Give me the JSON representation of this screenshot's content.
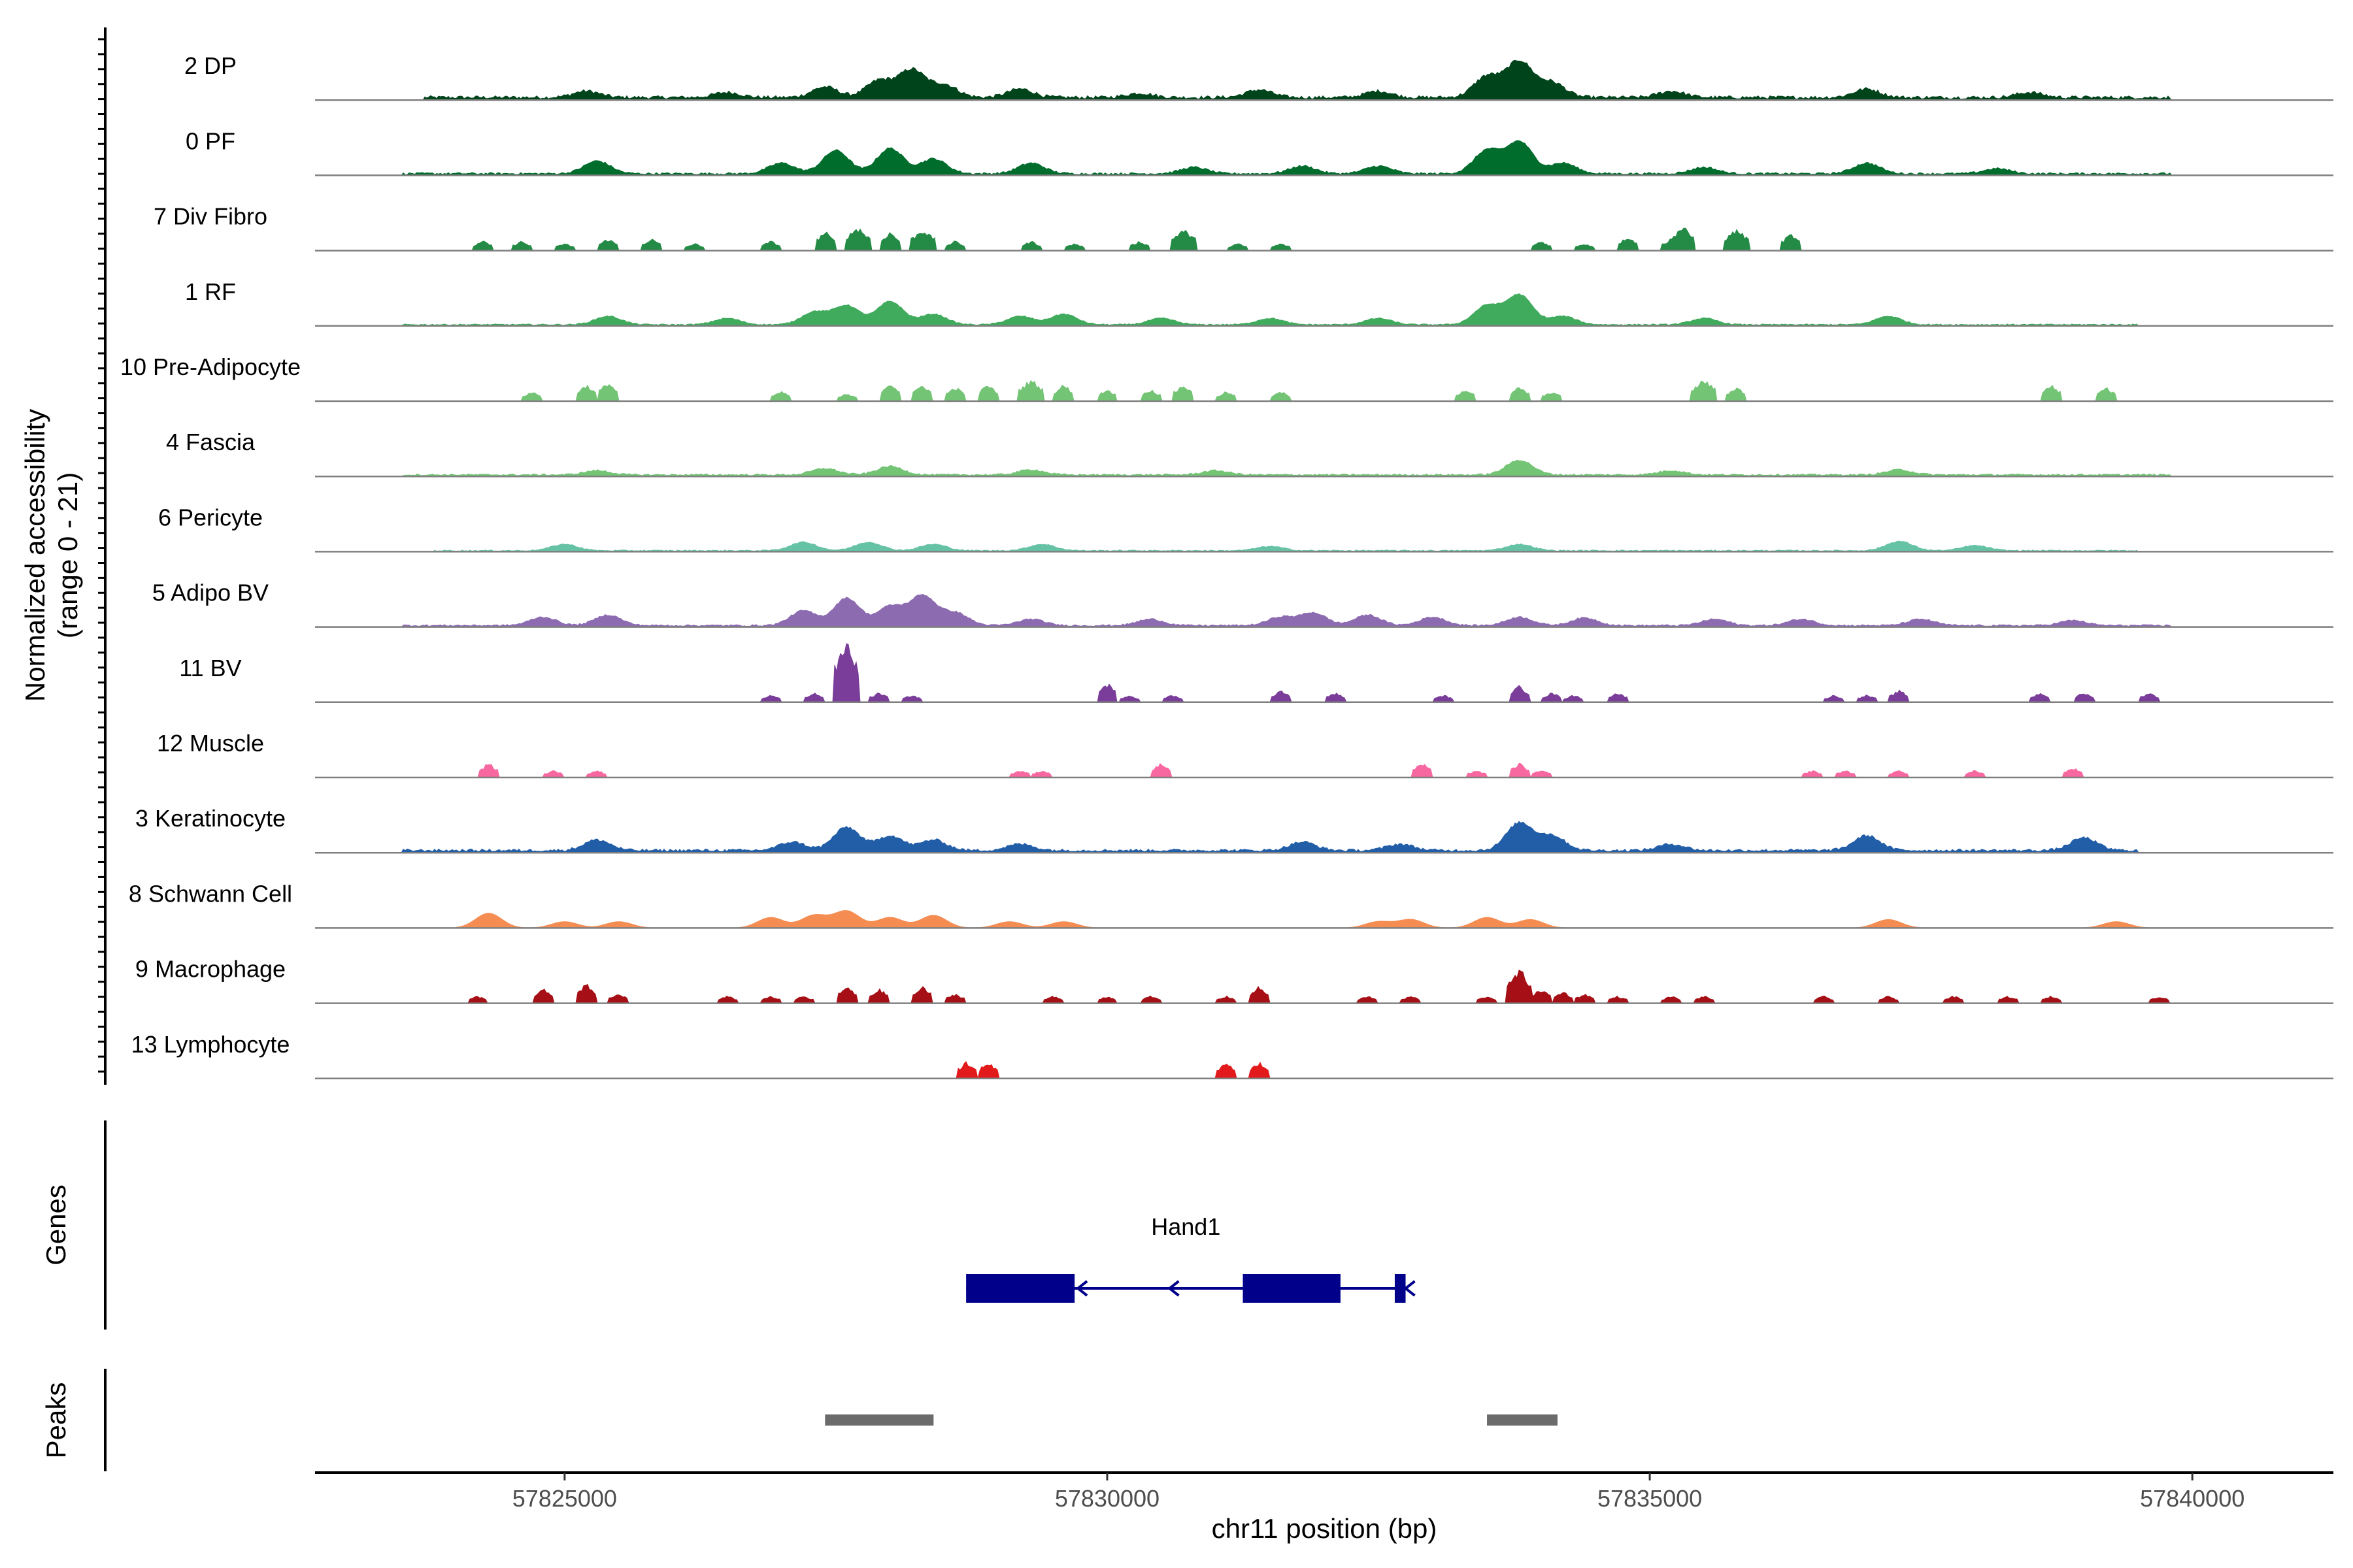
{
  "chart_data": {
    "type": "area",
    "subtype": "genome-coverage-tracks",
    "region": {
      "chrom": "chr11",
      "start": 57822700,
      "end": 57841300
    },
    "ylabel": "Normalized accessibility",
    "ylabel_range": "(range 0 - 21)",
    "ylim": [
      0,
      21
    ],
    "xlabel": "chr11 position (bp)",
    "xticks": [
      57825000,
      57830000,
      57835000,
      57840000
    ],
    "xtick_labels": [
      "57825000",
      "57830000",
      "57835000",
      "57840000"
    ],
    "tracks": [
      {
        "name": "2 DP",
        "color": "#00441b",
        "mode": "smooth",
        "range": [
          57823700,
          57839800
        ],
        "base": 0.8,
        "noise": 1.0,
        "peaks": [
          [
            57825200,
            1.5
          ],
          [
            57826500,
            1.2
          ],
          [
            57827400,
            2.5
          ],
          [
            57827900,
            4.0
          ],
          [
            57828200,
            6.5
          ],
          [
            57828500,
            3.0
          ],
          [
            57829200,
            2.0
          ],
          [
            57830300,
            1.0
          ],
          [
            57831400,
            1.8
          ],
          [
            57832500,
            1.5
          ],
          [
            57833500,
            5.0
          ],
          [
            57833800,
            8.5
          ],
          [
            57834100,
            3.5
          ],
          [
            57835200,
            1.5
          ],
          [
            57837000,
            2.0
          ],
          [
            57838500,
            1.2
          ]
        ]
      },
      {
        "name": "0 PF",
        "color": "#006d2c",
        "mode": "smooth",
        "range": [
          57823500,
          57839800
        ],
        "base": 0.6,
        "noise": 0.8,
        "peaks": [
          [
            57825300,
            3.0
          ],
          [
            57827000,
            2.5
          ],
          [
            57827500,
            5.5
          ],
          [
            57828000,
            6.0
          ],
          [
            57828400,
            3.5
          ],
          [
            57829300,
            2.5
          ],
          [
            57830800,
            1.5
          ],
          [
            57831800,
            1.8
          ],
          [
            57832500,
            1.8
          ],
          [
            57833500,
            5.5
          ],
          [
            57833800,
            7.5
          ],
          [
            57834200,
            2.5
          ],
          [
            57835500,
            1.5
          ],
          [
            57837000,
            2.5
          ],
          [
            57838200,
            1.2
          ]
        ]
      },
      {
        "name": "7 Div Fibro",
        "color": "#238b45",
        "mode": "blocky",
        "peaks": [
          [
            57824250,
            2.0
          ],
          [
            57824600,
            2.0
          ],
          [
            57825000,
            1.5
          ],
          [
            57825400,
            2.5
          ],
          [
            57825800,
            2.5
          ],
          [
            57826200,
            1.5
          ],
          [
            57826900,
            2.0
          ],
          [
            57827400,
            4.0
          ],
          [
            57827700,
            5.0
          ],
          [
            57828000,
            4.0
          ],
          [
            57828300,
            4.5
          ],
          [
            57828600,
            2.0
          ],
          [
            57829300,
            2.0
          ],
          [
            57829700,
            1.5
          ],
          [
            57830300,
            2.0
          ],
          [
            57830700,
            4.5
          ],
          [
            57831200,
            1.5
          ],
          [
            57831600,
            1.5
          ],
          [
            57834000,
            2.0
          ],
          [
            57834400,
            1.5
          ],
          [
            57834800,
            3.0
          ],
          [
            57835200,
            2.5
          ],
          [
            57835300,
            5.0
          ],
          [
            57835800,
            4.5
          ],
          [
            57836300,
            3.5
          ]
        ]
      },
      {
        "name": "1 RF",
        "color": "#41ab5d",
        "mode": "smooth",
        "range": [
          57823500,
          57839500
        ],
        "base": 0.5,
        "noise": 0.6,
        "peaks": [
          [
            57825400,
            2.0
          ],
          [
            57826500,
            1.5
          ],
          [
            57827300,
            3.0
          ],
          [
            57827600,
            4.5
          ],
          [
            57828000,
            5.5
          ],
          [
            57828400,
            2.5
          ],
          [
            57829200,
            2.0
          ],
          [
            57829600,
            2.5
          ],
          [
            57830500,
            1.5
          ],
          [
            57831500,
            1.5
          ],
          [
            57832500,
            1.5
          ],
          [
            57833500,
            4.5
          ],
          [
            57833800,
            7.0
          ],
          [
            57834200,
            2.0
          ],
          [
            57835500,
            1.5
          ],
          [
            57837200,
            2.0
          ]
        ]
      },
      {
        "name": "10 Pre-Adipocyte",
        "color": "#74c476",
        "mode": "blocky",
        "peaks": [
          [
            57824700,
            2.0
          ],
          [
            57825200,
            3.5
          ],
          [
            57825400,
            4.0
          ],
          [
            57827000,
            2.0
          ],
          [
            57827600,
            1.5
          ],
          [
            57828000,
            4.0
          ],
          [
            57828300,
            3.5
          ],
          [
            57828600,
            3.0
          ],
          [
            57828900,
            3.5
          ],
          [
            57829300,
            4.5
          ],
          [
            57829600,
            3.5
          ],
          [
            57830000,
            2.5
          ],
          [
            57830400,
            2.5
          ],
          [
            57830700,
            3.5
          ],
          [
            57831100,
            2.0
          ],
          [
            57831600,
            2.0
          ],
          [
            57833300,
            2.5
          ],
          [
            57833800,
            3.0
          ],
          [
            57834100,
            2.0
          ],
          [
            57835500,
            4.5
          ],
          [
            57835800,
            3.0
          ],
          [
            57838700,
            3.5
          ],
          [
            57839200,
            3.0
          ]
        ]
      },
      {
        "name": "4 Fascia",
        "color": "#74c476",
        "mode": "smooth",
        "range": [
          57823500,
          57839800
        ],
        "base": 0.6,
        "noise": 0.7,
        "peaks": [
          [
            57825300,
            1.0
          ],
          [
            57827400,
            1.5
          ],
          [
            57828000,
            2.0
          ],
          [
            57829300,
            1.2
          ],
          [
            57831000,
            1.0
          ],
          [
            57833800,
            3.5
          ],
          [
            57835200,
            1.0
          ],
          [
            57837300,
            1.2
          ]
        ]
      },
      {
        "name": "6 Pericyte",
        "color": "#66c2a4",
        "mode": "smooth",
        "range": [
          57823800,
          57839500
        ],
        "base": 0.4,
        "noise": 0.7,
        "peaks": [
          [
            57825000,
            1.5
          ],
          [
            57827200,
            2.0
          ],
          [
            57827800,
            2.0
          ],
          [
            57828400,
            1.5
          ],
          [
            57829400,
            1.5
          ],
          [
            57831500,
            1.0
          ],
          [
            57833800,
            1.5
          ],
          [
            57837300,
            2.2
          ],
          [
            57838000,
            1.2
          ]
        ]
      },
      {
        "name": "5 Adipo BV",
        "color": "#8c6bb1",
        "mode": "smooth",
        "range": [
          57823500,
          57839800
        ],
        "base": 0.5,
        "noise": 0.8,
        "peaks": [
          [
            57824800,
            2.0
          ],
          [
            57825400,
            2.5
          ],
          [
            57827200,
            3.5
          ],
          [
            57827600,
            6.5
          ],
          [
            57828000,
            4.5
          ],
          [
            57828300,
            7.0
          ],
          [
            57828600,
            3.0
          ],
          [
            57829300,
            1.5
          ],
          [
            57830400,
            1.5
          ],
          [
            57831600,
            2.0
          ],
          [
            57831900,
            3.0
          ],
          [
            57832400,
            2.5
          ],
          [
            57833000,
            2.0
          ],
          [
            57833800,
            2.0
          ],
          [
            57834400,
            1.8
          ],
          [
            57835600,
            1.5
          ],
          [
            57836400,
            1.5
          ],
          [
            57837500,
            1.5
          ],
          [
            57838900,
            1.2
          ]
        ]
      },
      {
        "name": "11 BV",
        "color": "#7a3d99",
        "mode": "blocky",
        "peaks": [
          [
            57826900,
            1.5
          ],
          [
            57827300,
            2.0
          ],
          [
            57827600,
            13.0
          ],
          [
            57827900,
            2.0
          ],
          [
            57828200,
            1.5
          ],
          [
            57830000,
            4.0
          ],
          [
            57830200,
            1.5
          ],
          [
            57830600,
            1.5
          ],
          [
            57831600,
            2.5
          ],
          [
            57832100,
            2.0
          ],
          [
            57833100,
            1.5
          ],
          [
            57833800,
            3.5
          ],
          [
            57834100,
            2.0
          ],
          [
            57834300,
            1.5
          ],
          [
            57834700,
            2.0
          ],
          [
            57836700,
            1.5
          ],
          [
            57837000,
            1.5
          ],
          [
            57837300,
            2.5
          ],
          [
            57838600,
            2.0
          ],
          [
            57839000,
            2.0
          ],
          [
            57839600,
            2.0
          ]
        ]
      },
      {
        "name": "12 Muscle",
        "color": "#f768a1",
        "mode": "blocky",
        "peaks": [
          [
            57824300,
            3.0
          ],
          [
            57824900,
            1.5
          ],
          [
            57825300,
            1.5
          ],
          [
            57829200,
            1.5
          ],
          [
            57829400,
            1.5
          ],
          [
            57830500,
            3.0
          ],
          [
            57832900,
            3.0
          ],
          [
            57833400,
            1.5
          ],
          [
            57833800,
            3.0
          ],
          [
            57834000,
            1.5
          ],
          [
            57836500,
            1.5
          ],
          [
            57836800,
            1.5
          ],
          [
            57837300,
            1.5
          ],
          [
            57838000,
            1.5
          ],
          [
            57838900,
            2.0
          ]
        ]
      },
      {
        "name": "3 Keratinocyte",
        "color": "#225ea8",
        "mode": "smooth",
        "range": [
          57823500,
          57839500
        ],
        "base": 0.8,
        "noise": 0.8,
        "peaks": [
          [
            57825300,
            2.5
          ],
          [
            57827100,
            2.0
          ],
          [
            57827600,
            5.5
          ],
          [
            57828000,
            3.5
          ],
          [
            57828400,
            2.5
          ],
          [
            57829200,
            1.5
          ],
          [
            57831800,
            2.0
          ],
          [
            57832700,
            1.5
          ],
          [
            57833800,
            6.5
          ],
          [
            57834100,
            3.5
          ],
          [
            57835200,
            1.5
          ],
          [
            57837000,
            3.5
          ],
          [
            57839000,
            3.0
          ]
        ]
      },
      {
        "name": "8 Schwann Cell",
        "color": "#f58d53",
        "mode": "smooth",
        "range": [
          57824000,
          57839800
        ],
        "base": 0.0,
        "noise": 0.6,
        "peaks": [
          [
            57824300,
            3.5
          ],
          [
            57825000,
            1.5
          ],
          [
            57825500,
            1.5
          ],
          [
            57826900,
            2.5
          ],
          [
            57827300,
            3.0
          ],
          [
            57827600,
            4.0
          ],
          [
            57828000,
            2.5
          ],
          [
            57828400,
            3.0
          ],
          [
            57829100,
            1.5
          ],
          [
            57829600,
            1.5
          ],
          [
            57832500,
            1.5
          ],
          [
            57832800,
            2.0
          ],
          [
            57833500,
            2.5
          ],
          [
            57833900,
            2.0
          ],
          [
            57837200,
            2.0
          ],
          [
            57839300,
            1.5
          ]
        ]
      },
      {
        "name": "9 Macrophage",
        "color": "#a50f15",
        "mode": "blocky",
        "peaks": [
          [
            57824200,
            1.5
          ],
          [
            57824800,
            3.0
          ],
          [
            57825200,
            4.0
          ],
          [
            57825500,
            2.0
          ],
          [
            57826500,
            1.5
          ],
          [
            57826900,
            1.5
          ],
          [
            57827200,
            1.5
          ],
          [
            57827600,
            3.5
          ],
          [
            57827900,
            3.0
          ],
          [
            57828300,
            3.5
          ],
          [
            57828600,
            2.0
          ],
          [
            57829500,
            1.5
          ],
          [
            57830000,
            1.5
          ],
          [
            57830400,
            1.5
          ],
          [
            57831100,
            1.5
          ],
          [
            57831400,
            3.5
          ],
          [
            57832400,
            1.5
          ],
          [
            57832800,
            1.5
          ],
          [
            57833500,
            1.5
          ],
          [
            57833800,
            7.0
          ],
          [
            57834000,
            3.0
          ],
          [
            57834200,
            2.5
          ],
          [
            57834400,
            2.0
          ],
          [
            57834700,
            1.5
          ],
          [
            57835200,
            1.5
          ],
          [
            57835500,
            1.5
          ],
          [
            57836600,
            1.5
          ],
          [
            57837200,
            1.5
          ],
          [
            57837800,
            1.5
          ],
          [
            57838300,
            1.5
          ],
          [
            57838700,
            1.5
          ],
          [
            57839700,
            1.5
          ]
        ]
      },
      {
        "name": "13 Lymphocyte",
        "color": "#e31a1c",
        "mode": "blocky",
        "peaks": [
          [
            57828700,
            3.5
          ],
          [
            57828900,
            3.5
          ],
          [
            57831100,
            3.5
          ],
          [
            57831400,
            3.5
          ]
        ]
      }
    ],
    "genes": [
      {
        "name": "Hand1",
        "strand": "-",
        "start": 57828700,
        "end": 57832750,
        "exons": [
          [
            57828700,
            57829700
          ],
          [
            57831250,
            57832150
          ],
          [
            57832650,
            57832750
          ]
        ]
      }
    ],
    "peaks": [
      [
        57827400,
        57828400
      ],
      [
        57833500,
        57834150
      ]
    ],
    "panel_labels": {
      "genes": "Genes",
      "peaks": "Peaks"
    },
    "colors": {
      "gene": "#00008b",
      "peak_bar": "#6b6b6b",
      "baseline": "#7f7f7f",
      "axis": "#000000"
    }
  }
}
